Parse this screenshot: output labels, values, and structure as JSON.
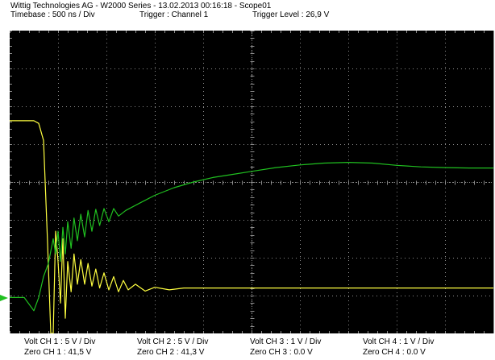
{
  "header": {
    "title_line": "Wittig Technologies AG - W2000 Series  -  13.02.2013 00:16:18 - Scope01",
    "timebase": "Timebase : 500 ns / Div",
    "trigger": "Trigger : Channel 1",
    "trigger_level": "Trigger Level : 26,9 V"
  },
  "footer": {
    "ch1": {
      "volt": "Volt CH 1 : 5 V / Div",
      "zero": "Zero CH 1 : 41,5 V"
    },
    "ch2": {
      "volt": "Volt CH 2 : 5 V / Div",
      "zero": "Zero CH 2 : 41,3 V"
    },
    "ch3": {
      "volt": "Volt CH 3 : 1 V / Div",
      "zero": "Zero CH 3 : 0.0 V"
    },
    "ch4": {
      "volt": "Volt CH 4 : 1 V / Div",
      "zero": "Zero CH 4 : 0.0 V"
    }
  },
  "colors": {
    "screen_bg": "#000000",
    "grid": "#8c8c8c",
    "ch1": "#ffff40",
    "ch2": "#20c020"
  },
  "chart_data": {
    "type": "line",
    "grid": true,
    "divisions": {
      "x": 10,
      "y": 8
    },
    "x_unit": "div",
    "y_unit": "div",
    "xlim": [
      0,
      10
    ],
    "ylim": [
      -4,
      4
    ],
    "series": [
      {
        "color": "#ffff40",
        "points": [
          [
            0,
            1.62
          ],
          [
            0.5,
            1.62
          ],
          [
            0.6,
            1.55
          ],
          [
            0.7,
            1.1
          ],
          [
            0.78,
            -1.5
          ],
          [
            0.85,
            -4
          ],
          [
            0.9,
            -4
          ],
          [
            0.95,
            -1.3
          ],
          [
            1.0,
            -2.1
          ],
          [
            1.05,
            -3.2
          ],
          [
            1.1,
            -1.5
          ],
          [
            1.15,
            -3.6
          ],
          [
            1.2,
            -2.1
          ],
          [
            1.27,
            -2.9
          ],
          [
            1.33,
            -1.9
          ],
          [
            1.4,
            -2.7
          ],
          [
            1.47,
            -2.05
          ],
          [
            1.55,
            -2.7
          ],
          [
            1.62,
            -2.15
          ],
          [
            1.7,
            -2.75
          ],
          [
            1.78,
            -2.3
          ],
          [
            1.86,
            -2.8
          ],
          [
            1.95,
            -2.4
          ],
          [
            2.05,
            -2.85
          ],
          [
            2.15,
            -2.5
          ],
          [
            2.25,
            -2.9
          ],
          [
            2.35,
            -2.6
          ],
          [
            2.45,
            -2.85
          ],
          [
            2.6,
            -2.7
          ],
          [
            2.8,
            -2.88
          ],
          [
            3.0,
            -2.78
          ],
          [
            3.3,
            -2.85
          ],
          [
            3.6,
            -2.8
          ],
          [
            4.0,
            -2.8
          ],
          [
            5.0,
            -2.8
          ],
          [
            6.0,
            -2.8
          ],
          [
            7.0,
            -2.8
          ],
          [
            8.0,
            -2.8
          ],
          [
            9.0,
            -2.8
          ],
          [
            10.0,
            -2.8
          ]
        ]
      },
      {
        "color": "#20c020",
        "points": [
          [
            0,
            -3.05
          ],
          [
            0.3,
            -3.05
          ],
          [
            0.5,
            -3.4
          ],
          [
            0.6,
            -3.05
          ],
          [
            0.7,
            -2.5
          ],
          [
            0.8,
            -2.15
          ],
          [
            0.9,
            -1.5
          ],
          [
            0.95,
            -1.9
          ],
          [
            1.0,
            -1.3
          ],
          [
            1.05,
            -2.1
          ],
          [
            1.1,
            -1.2
          ],
          [
            1.15,
            -1.9
          ],
          [
            1.2,
            -1.05
          ],
          [
            1.27,
            -1.75
          ],
          [
            1.33,
            -0.95
          ],
          [
            1.4,
            -1.55
          ],
          [
            1.47,
            -0.85
          ],
          [
            1.55,
            -1.45
          ],
          [
            1.62,
            -0.75
          ],
          [
            1.7,
            -1.3
          ],
          [
            1.78,
            -0.72
          ],
          [
            1.86,
            -1.15
          ],
          [
            1.95,
            -0.7
          ],
          [
            2.05,
            -1.05
          ],
          [
            2.15,
            -0.7
          ],
          [
            2.25,
            -0.9
          ],
          [
            2.4,
            -0.75
          ],
          [
            2.7,
            -0.55
          ],
          [
            3.0,
            -0.35
          ],
          [
            3.4,
            -0.15
          ],
          [
            3.8,
            0.0
          ],
          [
            4.2,
            0.12
          ],
          [
            4.6,
            0.2
          ],
          [
            5.0,
            0.28
          ],
          [
            5.5,
            0.38
          ],
          [
            6.0,
            0.45
          ],
          [
            6.5,
            0.5
          ],
          [
            7.0,
            0.52
          ],
          [
            7.5,
            0.5
          ],
          [
            8.0,
            0.44
          ],
          [
            8.5,
            0.4
          ],
          [
            9.0,
            0.38
          ],
          [
            9.5,
            0.37
          ],
          [
            10.0,
            0.37
          ]
        ]
      }
    ]
  }
}
